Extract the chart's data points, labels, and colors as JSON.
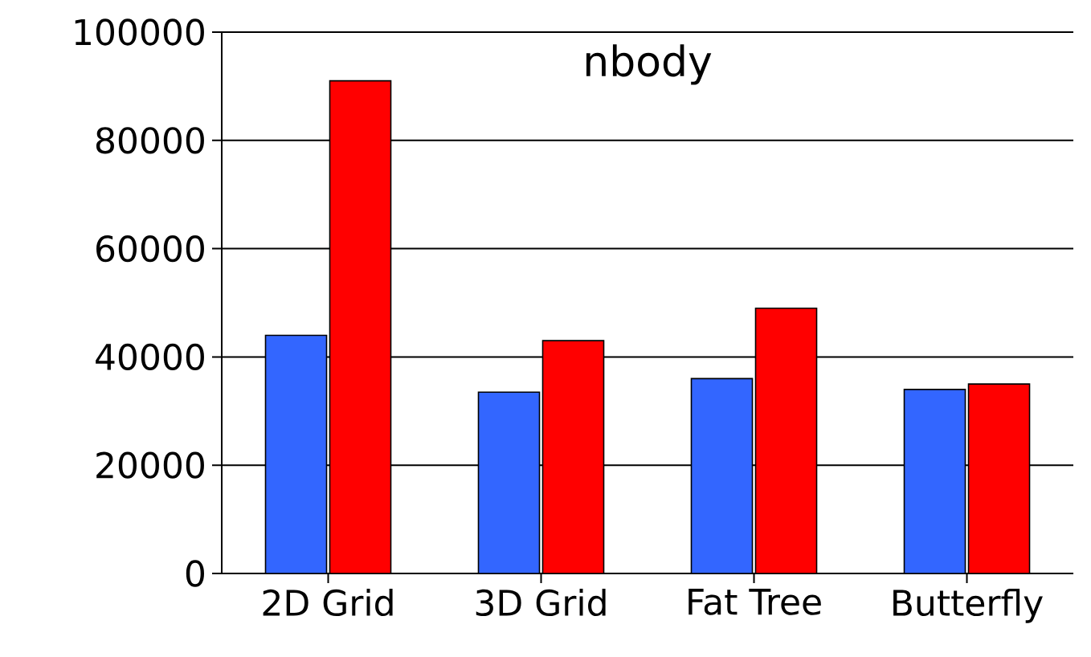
{
  "chart_data": {
    "type": "bar",
    "title": "nbody",
    "categories": [
      "2D Grid",
      "3D Grid",
      "Fat Tree",
      "Butterfly"
    ],
    "series": [
      {
        "color": "#3366ff",
        "values": [
          44000,
          33500,
          36000,
          34000
        ]
      },
      {
        "color": "#ff0000",
        "values": [
          91000,
          43000,
          49000,
          35000
        ]
      }
    ],
    "ylim": [
      0,
      100000
    ],
    "yticks": [
      0,
      20000,
      40000,
      60000,
      80000,
      100000
    ],
    "grid": "y"
  }
}
